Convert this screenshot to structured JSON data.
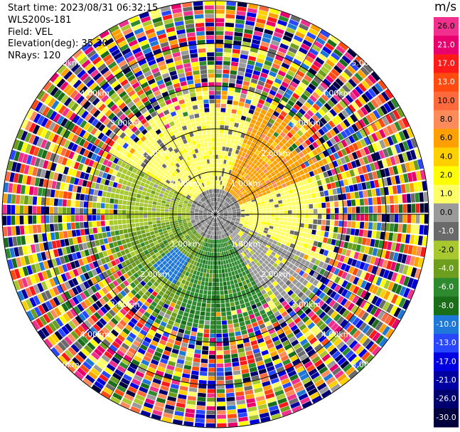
{
  "header": {
    "start_time": "Start time: 2023/08/31 06:32:15",
    "instrument": "WLS200s-181",
    "field": "Field: VEL",
    "elevation": "Elevation(deg): 35.30",
    "nrays": "NRays: 120"
  },
  "colorbar": {
    "unit": "m/s",
    "levels": [
      {
        "label": "26.0",
        "color": "#f0308c"
      },
      {
        "label": "21.0",
        "color": "#e8006e"
      },
      {
        "label": "17.0",
        "color": "#ff1a1a"
      },
      {
        "label": "13.0",
        "color": "#ff4a10"
      },
      {
        "label": "10.0",
        "color": "#ff6a3c"
      },
      {
        "label": "8.0",
        "color": "#ff8a5a"
      },
      {
        "label": "6.0",
        "color": "#ffa000"
      },
      {
        "label": "4.0",
        "color": "#ffd000"
      },
      {
        "label": "2.0",
        "color": "#ffff00"
      },
      {
        "label": "1.0",
        "color": "#ffff66"
      },
      {
        "label": "0.0",
        "color": "#9a9a9a"
      },
      {
        "label": "-1.0",
        "color": "#6a6a6a"
      },
      {
        "label": "-2.0",
        "color": "#a8c830"
      },
      {
        "label": "-4.0",
        "color": "#6e9e1e"
      },
      {
        "label": "-6.0",
        "color": "#2e8a2e"
      },
      {
        "label": "-8.0",
        "color": "#1a6e1a"
      },
      {
        "label": "-10.0",
        "color": "#1e78d8"
      },
      {
        "label": "-13.0",
        "color": "#2848ff"
      },
      {
        "label": "-17.0",
        "color": "#0000e0"
      },
      {
        "label": "-21.0",
        "color": "#0000a0"
      },
      {
        "label": "-26.0",
        "color": "#000070"
      },
      {
        "label": "-30.0",
        "color": "#00003c"
      }
    ]
  },
  "chart_data": {
    "type": "heatmap",
    "projection": "polar PPI",
    "nrays": 120,
    "range_max_km": 5.0,
    "range_rings_km": [
      1.0,
      2.0,
      3.0,
      4.0,
      5.0
    ],
    "ring_labels": [
      "1.00km",
      "2.00km",
      "3.00km",
      "4.00km",
      "5.00km"
    ],
    "velocity_unit": "m/s",
    "clean_region_km": 3.0,
    "field_description": [
      {
        "azimuth_from_deg": 300,
        "azimuth_to_deg": 20,
        "velocity": 1.5
      },
      {
        "azimuth_from_deg": 20,
        "azimuth_to_deg": 70,
        "velocity": 6.0
      },
      {
        "azimuth_from_deg": 70,
        "azimuth_to_deg": 115,
        "velocity": 1.5
      },
      {
        "azimuth_from_deg": 115,
        "azimuth_to_deg": 150,
        "velocity": 0.0
      },
      {
        "azimuth_from_deg": 150,
        "azimuth_to_deg": 200,
        "velocity": -6.0
      },
      {
        "azimuth_from_deg": 200,
        "azimuth_to_deg": 260,
        "velocity": -4.0
      },
      {
        "azimuth_from_deg": 260,
        "azimuth_to_deg": 300,
        "velocity": -2.0
      }
    ],
    "blue_patch": {
      "azimuth_deg": 220,
      "range_km": 1.5,
      "velocity": -10.0
    }
  }
}
